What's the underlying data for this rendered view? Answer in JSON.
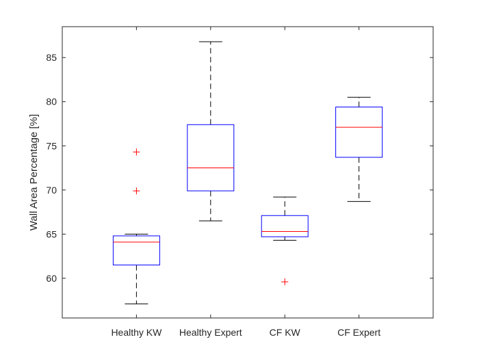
{
  "chart_data": {
    "type": "box",
    "title": "",
    "xlabel": "",
    "ylabel": "Wall Area Percentage [%]",
    "ylim": [
      55.5,
      88.5
    ],
    "yticks": [
      60,
      65,
      70,
      75,
      80,
      85
    ],
    "grid": false,
    "categories": [
      "Healthy KW",
      "Healthy Expert",
      "CF KW",
      "CF Expert"
    ],
    "boxes": [
      {
        "category": "Healthy KW",
        "whisker_low": 57.1,
        "q1": 61.5,
        "median": 64.1,
        "q3": 64.8,
        "whisker_high": 65.0,
        "outliers": [
          69.9,
          74.3
        ]
      },
      {
        "category": "Healthy Expert",
        "whisker_low": 66.5,
        "q1": 69.9,
        "median": 72.5,
        "q3": 77.4,
        "whisker_high": 86.8,
        "outliers": []
      },
      {
        "category": "CF KW",
        "whisker_low": 64.3,
        "q1": 64.7,
        "median": 65.3,
        "q3": 67.1,
        "whisker_high": 69.2,
        "outliers": [
          59.6
        ]
      },
      {
        "category": "CF Expert",
        "whisker_low": 68.7,
        "q1": 73.7,
        "median": 77.1,
        "q3": 79.4,
        "whisker_high": 80.5,
        "outliers": []
      }
    ],
    "colors": {
      "box": "#0000ff",
      "median": "#ff0000",
      "whisker": "#000000",
      "outlier": "#ff0000",
      "axis": "#262626"
    }
  }
}
